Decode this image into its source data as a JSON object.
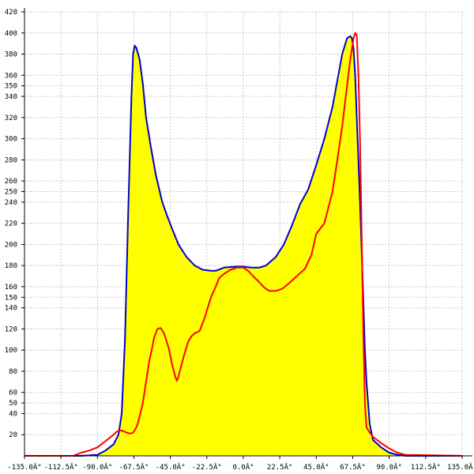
{
  "chart_data": {
    "type": "area",
    "title": "",
    "xlabel": "",
    "ylabel": "",
    "xlim": [
      -135,
      135
    ],
    "ylim": [
      0,
      420
    ],
    "grid": true,
    "x_ticks": [
      -135,
      -112.5,
      -90,
      -67.5,
      -45,
      -22.5,
      0,
      22.5,
      45,
      67.5,
      90,
      112.5,
      135
    ],
    "x_tick_labels": [
      "-135.0Â°",
      "-112.5Â°",
      "-90.0Â°",
      "-67.5Â°",
      "-45.0Â°",
      "-22.5Â°",
      "0.0Â°",
      "22.5Â°",
      "45.0Â°",
      "67.5Â°",
      "90.0Â°",
      "112.5Â°",
      "135.0Â°"
    ],
    "y_ticks": [
      20,
      40,
      50,
      60,
      80,
      100,
      120,
      140,
      150,
      160,
      180,
      200,
      220,
      240,
      250,
      260,
      280,
      300,
      320,
      340,
      350,
      360,
      380,
      400,
      420
    ],
    "y_tick_labels": [
      "20",
      "40",
      "50",
      "60",
      "80",
      "100",
      "120",
      "140",
      "150",
      "160",
      "180",
      "200",
      "220",
      "240",
      "250",
      "260",
      "280",
      "300",
      "320",
      "340",
      "350",
      "360",
      "380",
      "400",
      "420"
    ],
    "fill_color": "#ffff00",
    "series": [
      {
        "color": "#0000cc",
        "x": [
          -135,
          -100,
          -90,
          -85,
          -80,
          -77,
          -75,
          -73,
          -71,
          -69,
          -68,
          -67,
          -66,
          -64,
          -62,
          -60,
          -57,
          -54,
          -50,
          -47,
          -44,
          -40,
          -35,
          -30,
          -25,
          -20,
          -17,
          -12,
          -5,
          0,
          5,
          10,
          14,
          20,
          25,
          30,
          35,
          40,
          45,
          50,
          55,
          58,
          61,
          64,
          66,
          67,
          68,
          69,
          70,
          72,
          74,
          75,
          76,
          78,
          80,
          85,
          90,
          95,
          100,
          135
        ],
        "y": [
          0,
          0,
          1,
          5,
          11,
          20,
          40,
          110,
          230,
          340,
          380,
          388,
          386,
          375,
          352,
          320,
          292,
          266,
          240,
          227,
          215,
          200,
          188,
          180,
          176,
          175,
          175,
          178,
          179,
          179,
          178,
          178,
          180,
          188,
          200,
          218,
          238,
          252,
          275,
          300,
          330,
          355,
          380,
          395,
          397,
          395,
          385,
          360,
          320,
          240,
          150,
          100,
          70,
          30,
          15,
          8,
          3,
          1,
          0,
          0
        ]
      },
      {
        "color": "#ff0000",
        "x": [
          -135,
          -105,
          -100,
          -95,
          -90,
          -85,
          -80,
          -78,
          -75,
          -72,
          -70,
          -68,
          -66,
          -65,
          -62,
          -60,
          -58,
          -56,
          -55,
          -53,
          -51,
          -49,
          -46,
          -44,
          -42,
          -41,
          -40,
          -38,
          -36,
          -34,
          -32,
          -30,
          -27,
          -24,
          -22,
          -20,
          -17,
          -15,
          -12,
          -8,
          -4,
          0,
          3,
          6,
          10,
          13,
          16,
          20,
          24,
          28,
          33,
          38,
          42,
          45,
          50,
          55,
          58,
          61,
          64,
          66,
          68,
          69,
          70,
          71,
          72,
          73,
          74,
          75,
          76,
          78,
          80,
          85,
          90,
          95,
          100,
          135
        ],
        "y": [
          0,
          0,
          3,
          5,
          8,
          14,
          20,
          23,
          24,
          22,
          21,
          22,
          27,
          31,
          50,
          70,
          90,
          104,
          112,
          120,
          121,
          116,
          102,
          87,
          75,
          71,
          75,
          87,
          98,
          108,
          113,
          116,
          118,
          130,
          140,
          150,
          160,
          168,
          172,
          176,
          178,
          178,
          175,
          170,
          164,
          159,
          156,
          156,
          158,
          163,
          170,
          177,
          190,
          210,
          220,
          250,
          280,
          312,
          350,
          375,
          395,
          400,
          398,
          360,
          300,
          210,
          120,
          50,
          27,
          22,
          18,
          12,
          7,
          3,
          1,
          0
        ]
      }
    ]
  }
}
